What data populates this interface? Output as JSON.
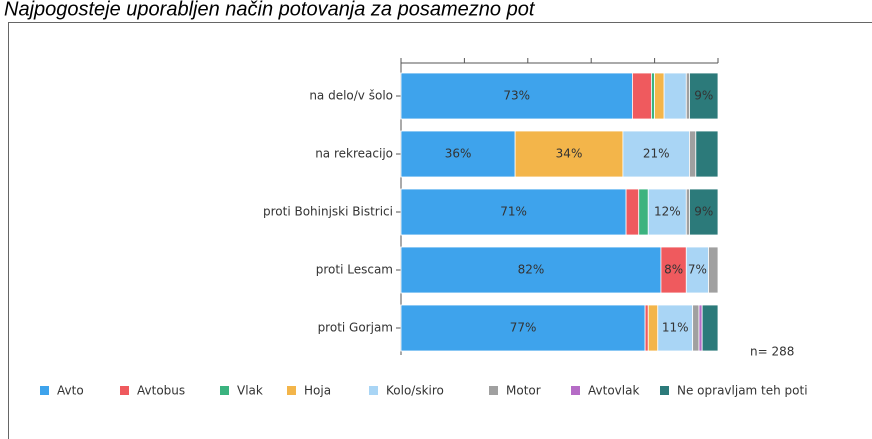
{
  "chart_data": {
    "type": "stacked_barh",
    "title": "Najpogosteje uporabljen način potovanja za posamezno pot",
    "annotation": "n= 288",
    "categories": [
      "na delo/v šolo",
      "na rekreacijo",
      "proti Bohinjski Bistrici",
      "proti Lescam",
      "proti Gorjam"
    ],
    "xlim": [
      0,
      100
    ],
    "xticks": [
      0,
      20,
      40,
      60,
      80,
      100
    ],
    "legend": "bottom",
    "series": [
      {
        "name": "Avto",
        "color": "#3ea3ec",
        "values": [
          73,
          36,
          71,
          82,
          77
        ],
        "value_labels": [
          "73%",
          "36%",
          "71%",
          "82%",
          "77%"
        ]
      },
      {
        "name": "Avtobus",
        "color": "#ef5a5e",
        "values": [
          6,
          0,
          4,
          8,
          1
        ],
        "value_labels": [
          null,
          null,
          null,
          "8%",
          null
        ]
      },
      {
        "name": "Vlak",
        "color": "#3bb37f",
        "values": [
          1,
          0,
          3,
          0,
          0
        ],
        "value_labels": [
          null,
          null,
          null,
          null,
          null
        ]
      },
      {
        "name": "Hoja",
        "color": "#f3b54a",
        "values": [
          3,
          34,
          0,
          0,
          3
        ],
        "value_labels": [
          null,
          "34%",
          null,
          null,
          null
        ]
      },
      {
        "name": "Kolo/skiro",
        "color": "#a9d5f5",
        "values": [
          7,
          21,
          12,
          7,
          11
        ],
        "value_labels": [
          null,
          "21%",
          "12%",
          "7%",
          "11%"
        ]
      },
      {
        "name": "Motor",
        "color": "#a0a0a0",
        "values": [
          1,
          2,
          1,
          3,
          2
        ],
        "value_labels": [
          null,
          null,
          null,
          null,
          null
        ]
      },
      {
        "name": "Avtovlak",
        "color": "#b56cc6",
        "values": [
          0,
          0,
          0,
          0,
          1
        ],
        "value_labels": [
          null,
          null,
          null,
          null,
          null
        ]
      },
      {
        "name": "Ne opravljam teh poti",
        "color": "#2c7a7a",
        "values": [
          9,
          7,
          9,
          0,
          5
        ],
        "value_labels": [
          "9%",
          null,
          "9%",
          null,
          null
        ]
      }
    ]
  }
}
